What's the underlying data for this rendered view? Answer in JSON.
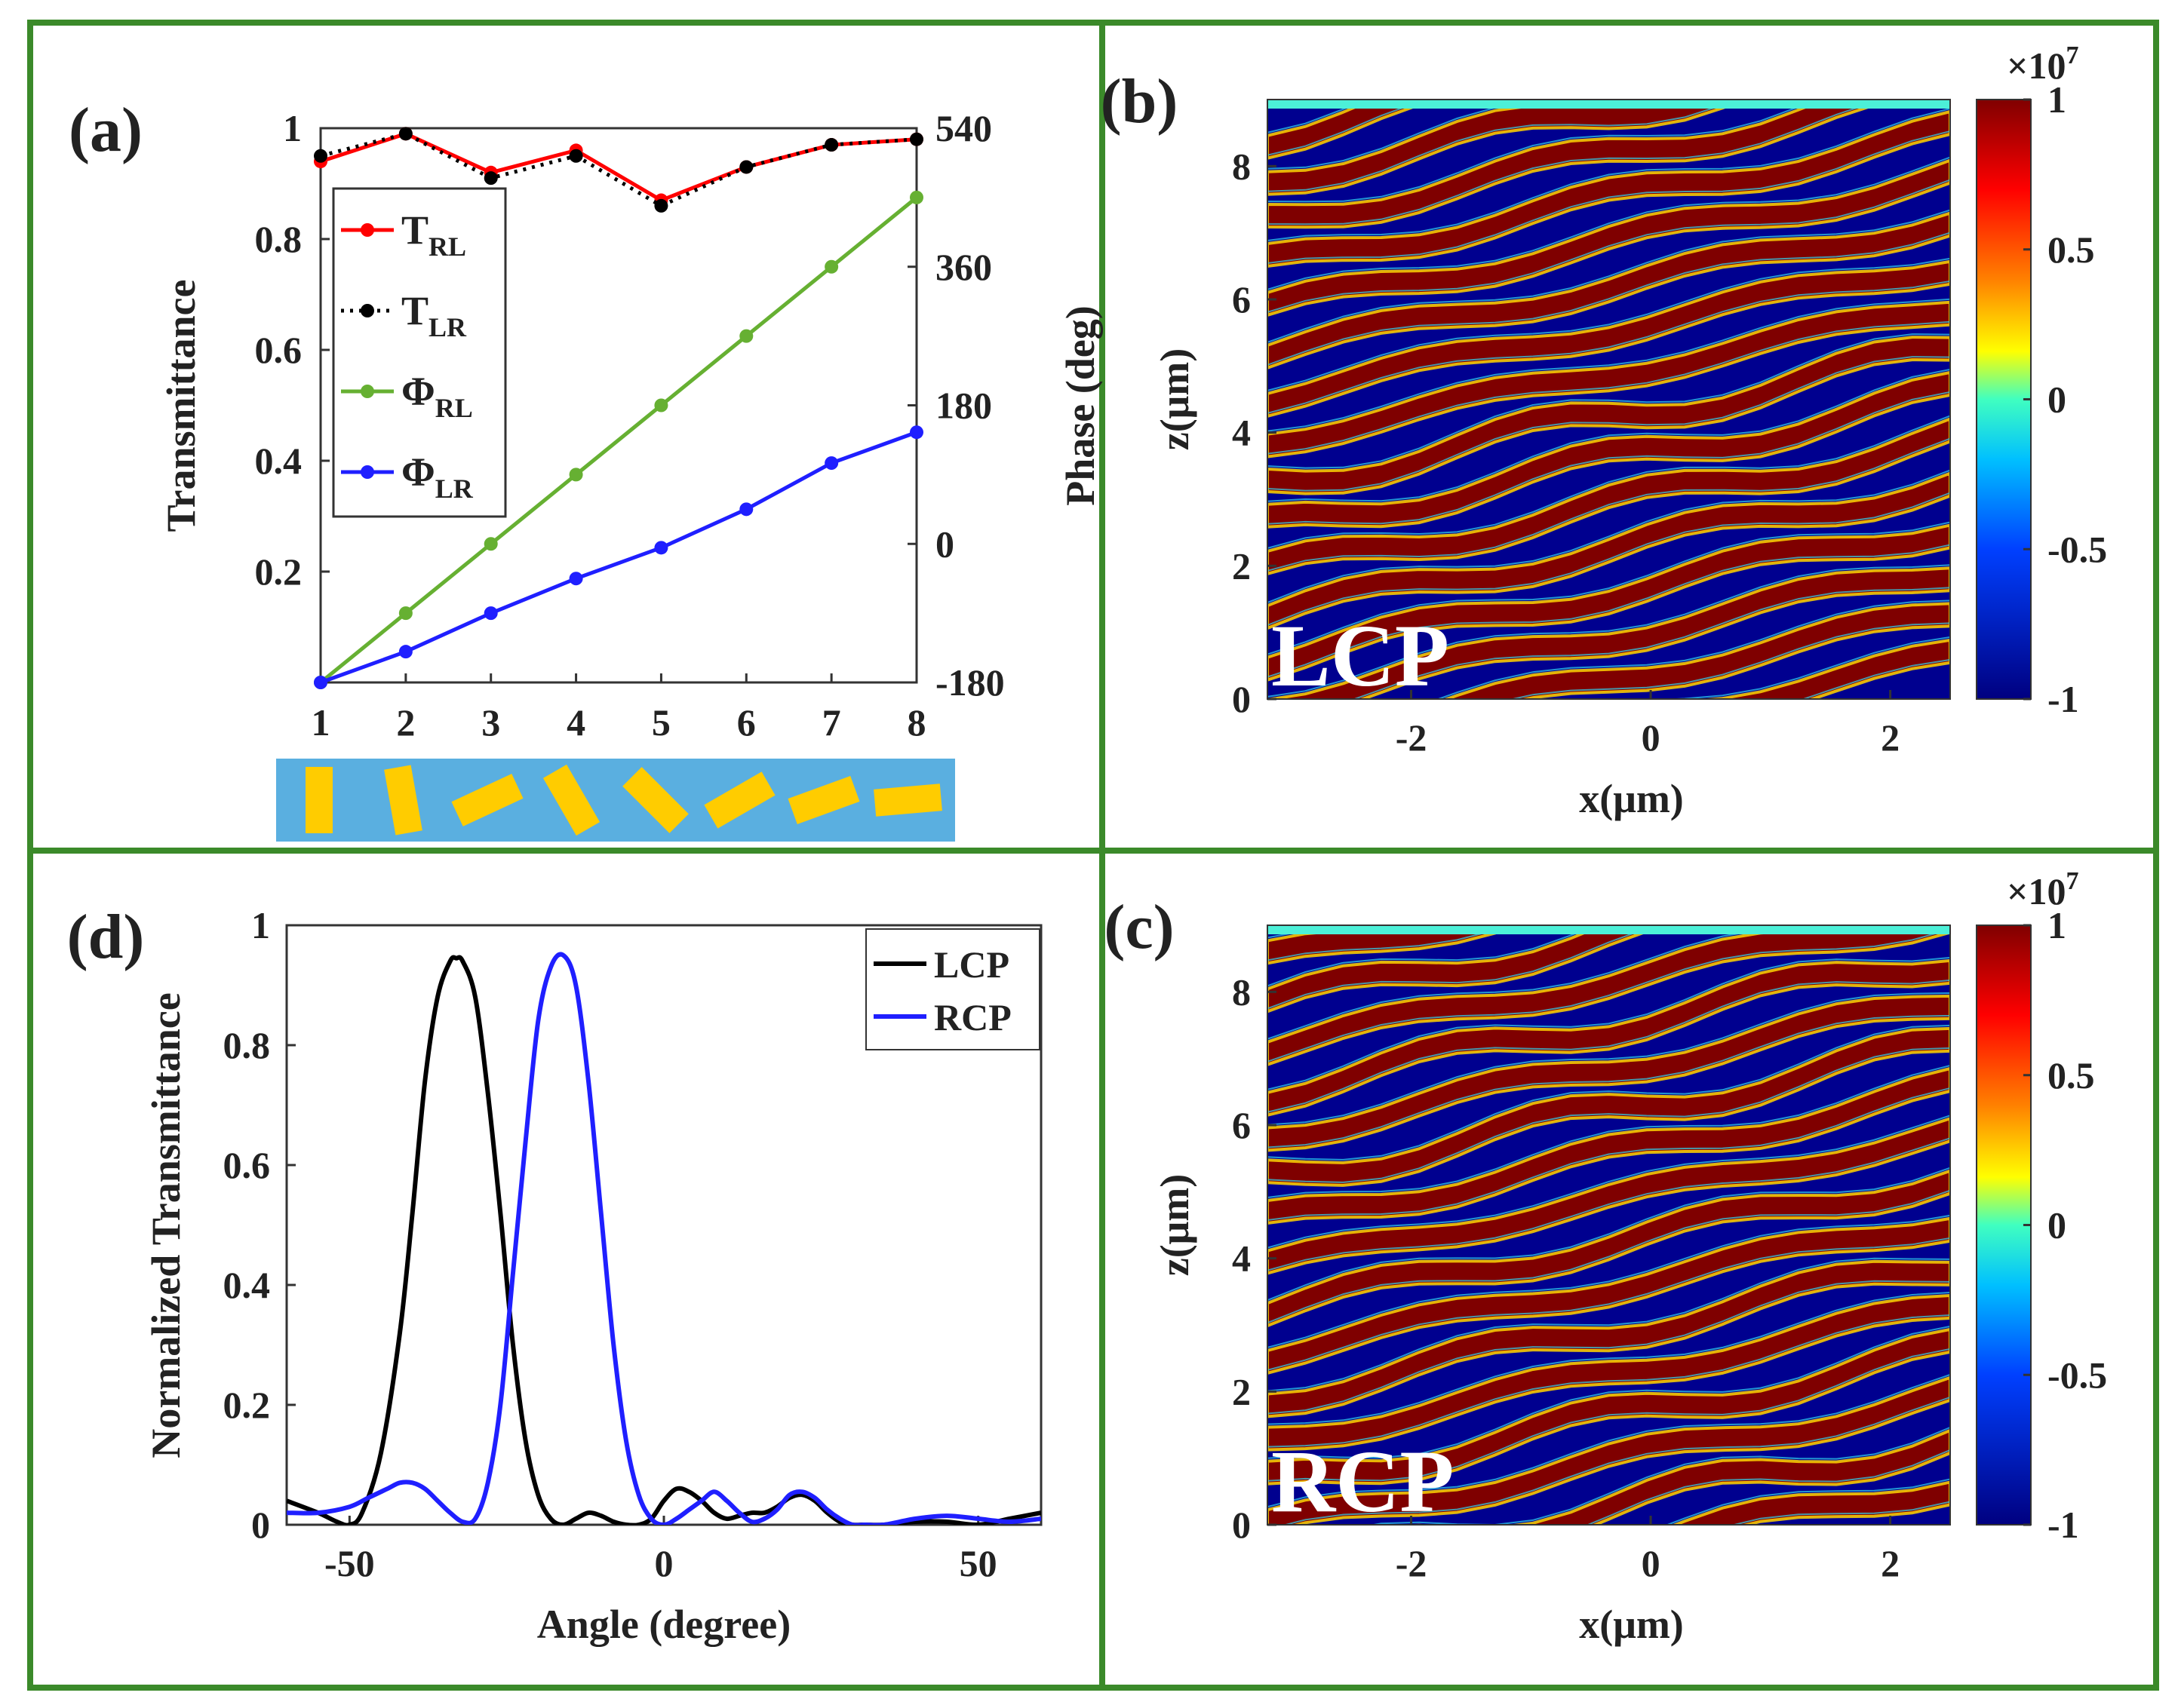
{
  "colors": {
    "border": "#3b8a2a",
    "t_rl": "#ff0000",
    "t_lr": "#000000",
    "phi_rl": "#66b032",
    "phi_lr": "#1f1fff",
    "lcp": "#000000",
    "rcp": "#1f1fff",
    "unit_bg": "#5aafe0",
    "unit_bar": "#ffcc00",
    "field_red": "#7f0000",
    "field_blue": "#00008f",
    "field_top": "#4cf0d8"
  },
  "chart_data": [
    {
      "panel": "a",
      "label": "(a)",
      "type": "line",
      "x": [
        1,
        2,
        3,
        4,
        5,
        6,
        7,
        8
      ],
      "xlim": [
        1,
        8
      ],
      "xticks": [
        "1",
        "2",
        "3",
        "4",
        "5",
        "6",
        "7",
        "8"
      ],
      "ylabel": "Transmittance",
      "ylim": [
        0,
        1
      ],
      "yticks": [
        "0.2",
        "0.4",
        "0.6",
        "0.8",
        "1"
      ],
      "y2label": "Phase (deg)",
      "y2lim": [
        -180,
        540
      ],
      "y2ticks": [
        "-180",
        "0",
        "180",
        "360",
        "540"
      ],
      "series": [
        {
          "name": "T_RL",
          "label_main": "T",
          "label_sub": "RL",
          "axis": "left",
          "style": "solid",
          "values": [
            0.94,
            0.99,
            0.92,
            0.96,
            0.87,
            0.93,
            0.97,
            0.98
          ]
        },
        {
          "name": "T_LR",
          "label_main": "T",
          "label_sub": "LR",
          "axis": "left",
          "style": "dotted",
          "values": [
            0.95,
            0.99,
            0.91,
            0.95,
            0.86,
            0.93,
            0.97,
            0.98
          ]
        },
        {
          "name": "Φ_RL",
          "label_main": "Φ",
          "label_sub": "RL",
          "axis": "right",
          "style": "solid",
          "values": [
            -180,
            -90,
            0,
            90,
            180,
            270,
            360,
            450
          ]
        },
        {
          "name": "Φ_LR",
          "label_main": "Φ",
          "label_sub": "LR",
          "axis": "right",
          "style": "solid",
          "values": [
            -180,
            -140,
            -90,
            -45,
            -5,
            45,
            105,
            145
          ]
        }
      ],
      "unit_cell_rotations_deg": [
        0,
        10,
        -25,
        60,
        45,
        -30,
        -20,
        -5
      ]
    },
    {
      "panel": "b",
      "label": "(b)",
      "type": "heatmap",
      "overlay_text": "LCP",
      "xlabel": "x(μm)",
      "ylabel": "z(μm)",
      "xlim": [
        -3.2,
        2.5
      ],
      "ylim": [
        0,
        9
      ],
      "xticks": [
        "-2",
        "0",
        "2"
      ],
      "yticks": [
        "0",
        "2",
        "4",
        "6",
        "8"
      ],
      "colorbar": {
        "range": [
          -1,
          1
        ],
        "ticks": [
          "1",
          "0.5",
          "0",
          "-0.5",
          "-1"
        ],
        "exponent_base": "×10",
        "exponent": "7"
      }
    },
    {
      "panel": "c",
      "label": "(c)",
      "type": "heatmap",
      "overlay_text": "RCP",
      "xlabel": "x(μm)",
      "ylabel": "z(μm)",
      "xlim": [
        -3.2,
        2.5
      ],
      "ylim": [
        0,
        9
      ],
      "xticks": [
        "-2",
        "0",
        "2"
      ],
      "yticks": [
        "0",
        "2",
        "4",
        "6",
        "8"
      ],
      "colorbar": {
        "range": [
          -1,
          1
        ],
        "ticks": [
          "1",
          "0.5",
          "0",
          "-0.5",
          "-1"
        ],
        "exponent_base": "×10",
        "exponent": "7"
      }
    },
    {
      "panel": "d",
      "label": "(d)",
      "type": "line",
      "xlabel": "Angle (degree)",
      "ylabel": "Normalized Transmittance",
      "xlim": [
        -60,
        60
      ],
      "ylim": [
        0,
        1
      ],
      "xticks": [
        "-50",
        "0",
        "50"
      ],
      "yticks": [
        "0",
        "0.2",
        "0.4",
        "0.6",
        "0.8",
        "1"
      ],
      "series": [
        {
          "name": "LCP",
          "x": [
            -60,
            -55,
            -52,
            -50,
            -48,
            -45,
            -42,
            -40,
            -38,
            -36,
            -34,
            -33,
            -32,
            -30,
            -28,
            -26,
            -24,
            -22,
            -20,
            -18,
            -16,
            -14,
            -12,
            -10,
            -8,
            -6,
            -4,
            -2,
            0,
            2,
            4,
            6,
            8,
            10,
            12,
            14,
            16,
            18,
            20,
            22,
            24,
            26,
            28,
            30,
            32,
            35,
            40,
            45,
            50,
            55,
            60
          ],
          "values": [
            0.04,
            0.02,
            0.005,
            0.0,
            0.02,
            0.12,
            0.32,
            0.52,
            0.74,
            0.88,
            0.94,
            0.945,
            0.94,
            0.88,
            0.72,
            0.52,
            0.3,
            0.14,
            0.05,
            0.01,
            0.0,
            0.01,
            0.02,
            0.015,
            0.005,
            0.0,
            0.0,
            0.01,
            0.04,
            0.06,
            0.055,
            0.04,
            0.02,
            0.01,
            0.015,
            0.02,
            0.02,
            0.03,
            0.045,
            0.05,
            0.04,
            0.02,
            0.005,
            0.0,
            0.0,
            0.0,
            0.005,
            0.005,
            0.0,
            0.01,
            0.02
          ]
        },
        {
          "name": "RCP",
          "x": [
            -60,
            -55,
            -50,
            -47,
            -44,
            -42,
            -40,
            -38,
            -36,
            -34,
            -32,
            -30,
            -28,
            -26,
            -24,
            -22,
            -20,
            -18,
            -16,
            -14,
            -12,
            -10,
            -8,
            -6,
            -4,
            -2,
            0,
            2,
            4,
            6,
            8,
            10,
            12,
            14,
            16,
            18,
            20,
            22,
            24,
            26,
            28,
            30,
            32,
            35,
            40,
            45,
            50,
            55,
            60
          ],
          "values": [
            0.02,
            0.02,
            0.03,
            0.045,
            0.06,
            0.07,
            0.07,
            0.06,
            0.04,
            0.02,
            0.005,
            0.01,
            0.07,
            0.2,
            0.42,
            0.64,
            0.84,
            0.93,
            0.95,
            0.9,
            0.74,
            0.52,
            0.3,
            0.14,
            0.05,
            0.01,
            0.0,
            0.01,
            0.025,
            0.04,
            0.055,
            0.04,
            0.02,
            0.005,
            0.01,
            0.025,
            0.05,
            0.055,
            0.045,
            0.025,
            0.01,
            0.0,
            0.0,
            0.0,
            0.01,
            0.015,
            0.01,
            0.005,
            0.01
          ]
        }
      ],
      "legend": [
        "LCP",
        "RCP"
      ]
    }
  ]
}
